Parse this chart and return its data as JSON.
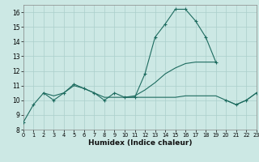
{
  "xlabel": "Humidex (Indice chaleur)",
  "xlim": [
    0,
    23
  ],
  "ylim": [
    8,
    16.5
  ],
  "yticks": [
    8,
    9,
    10,
    11,
    12,
    13,
    14,
    15,
    16
  ],
  "xticks": [
    0,
    1,
    2,
    3,
    4,
    5,
    6,
    7,
    8,
    9,
    10,
    11,
    12,
    13,
    14,
    15,
    16,
    17,
    18,
    19,
    20,
    21,
    22,
    23
  ],
  "bg_color": "#cce8e4",
  "line_color": "#1d6b5f",
  "grid_color": "#aacfcb",
  "series": [
    {
      "x": [
        0,
        1,
        2,
        3,
        4,
        5,
        6,
        7,
        8,
        9,
        10,
        11,
        12,
        13,
        14,
        15,
        16,
        17,
        18,
        19
      ],
      "y": [
        8.5,
        9.7,
        10.5,
        10.0,
        10.5,
        11.1,
        10.8,
        10.5,
        10.0,
        10.5,
        10.2,
        10.2,
        11.8,
        14.3,
        15.2,
        16.2,
        16.2,
        15.4,
        14.3,
        12.6
      ],
      "marker": true
    },
    {
      "x": [
        2,
        3,
        4,
        5,
        6,
        7,
        8,
        9,
        10,
        11,
        12,
        13,
        14,
        15,
        16,
        17,
        18,
        19,
        20,
        21,
        22,
        23
      ],
      "y": [
        10.5,
        10.3,
        10.5,
        11.0,
        10.8,
        10.5,
        10.2,
        10.2,
        10.2,
        10.2,
        10.2,
        10.2,
        10.2,
        10.2,
        10.3,
        10.3,
        10.3,
        10.3,
        10.0,
        9.7,
        10.0,
        10.5
      ],
      "marker": false
    },
    {
      "x": [
        10,
        11,
        12,
        13,
        14,
        15,
        16,
        17,
        18,
        19
      ],
      "y": [
        10.2,
        10.3,
        10.7,
        11.2,
        11.8,
        12.2,
        12.5,
        12.6,
        12.6,
        12.6
      ],
      "marker": false
    },
    {
      "x": [
        20,
        21,
        22,
        23
      ],
      "y": [
        10.0,
        9.7,
        10.0,
        10.5
      ],
      "marker": true
    }
  ]
}
